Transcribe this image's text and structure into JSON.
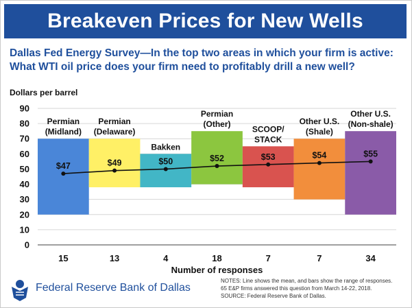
{
  "banner_title": "Breakeven Prices for New Wells",
  "subtitle": "Dallas Fed Energy Survey—In the top two areas in which your firm is active: What WTI oil price does your firm need to profitably drill a new well?",
  "footer": {
    "org": "Federal Reserve Bank of Dallas",
    "notes_1": "NOTES: Line shows the mean, and bars show the range of responses.",
    "notes_2": "65 E&P firms answered this question from March 14-22, 2018.",
    "notes_3": "SOURCE: Federal Reserve Bank of Dallas."
  },
  "chart_data": {
    "type": "bar",
    "title": "",
    "ylabel": "Dollars per barrel",
    "xlabel": "Number of responses",
    "ylim": [
      0,
      90
    ],
    "yticks": [
      0,
      10,
      20,
      30,
      40,
      50,
      60,
      70,
      80,
      90
    ],
    "grid": true,
    "categories": [
      {
        "label_lines": [
          "Permian",
          "(Midland)"
        ],
        "responses": "15",
        "low": 20,
        "high": 70,
        "mean": 47,
        "mean_label": "$47",
        "color": "#4a86d8"
      },
      {
        "label_lines": [
          "Permian",
          "(Delaware)"
        ],
        "responses": "13",
        "low": 38,
        "high": 70,
        "mean": 49,
        "mean_label": "$49",
        "color": "#fff066"
      },
      {
        "label_lines": [
          "Bakken"
        ],
        "responses": "4",
        "low": 38,
        "high": 60,
        "mean": 50,
        "mean_label": "$50",
        "color": "#42b6c6"
      },
      {
        "label_lines": [
          "Permian",
          "(Other)"
        ],
        "responses": "18",
        "low": 40,
        "high": 75,
        "mean": 52,
        "mean_label": "$52",
        "color": "#8cc63f"
      },
      {
        "label_lines": [
          "SCOOP/",
          "STACK"
        ],
        "responses": "7",
        "low": 38,
        "high": 65,
        "mean": 53,
        "mean_label": "$53",
        "color": "#d9534f"
      },
      {
        "label_lines": [
          "Other U.S.",
          "(Shale)"
        ],
        "responses": "7",
        "low": 30,
        "high": 70,
        "mean": 54,
        "mean_label": "$54",
        "color": "#f28e3c"
      },
      {
        "label_lines": [
          "Other U.S.",
          "(Non-shale)"
        ],
        "responses": "34",
        "low": 20,
        "high": 75,
        "mean": 55,
        "mean_label": "$55",
        "color": "#8a5ba8"
      }
    ],
    "series": [
      {
        "name": "",
        "kind": "range-bar"
      },
      {
        "name": "",
        "kind": "mean-line",
        "color": "#111111"
      }
    ]
  }
}
